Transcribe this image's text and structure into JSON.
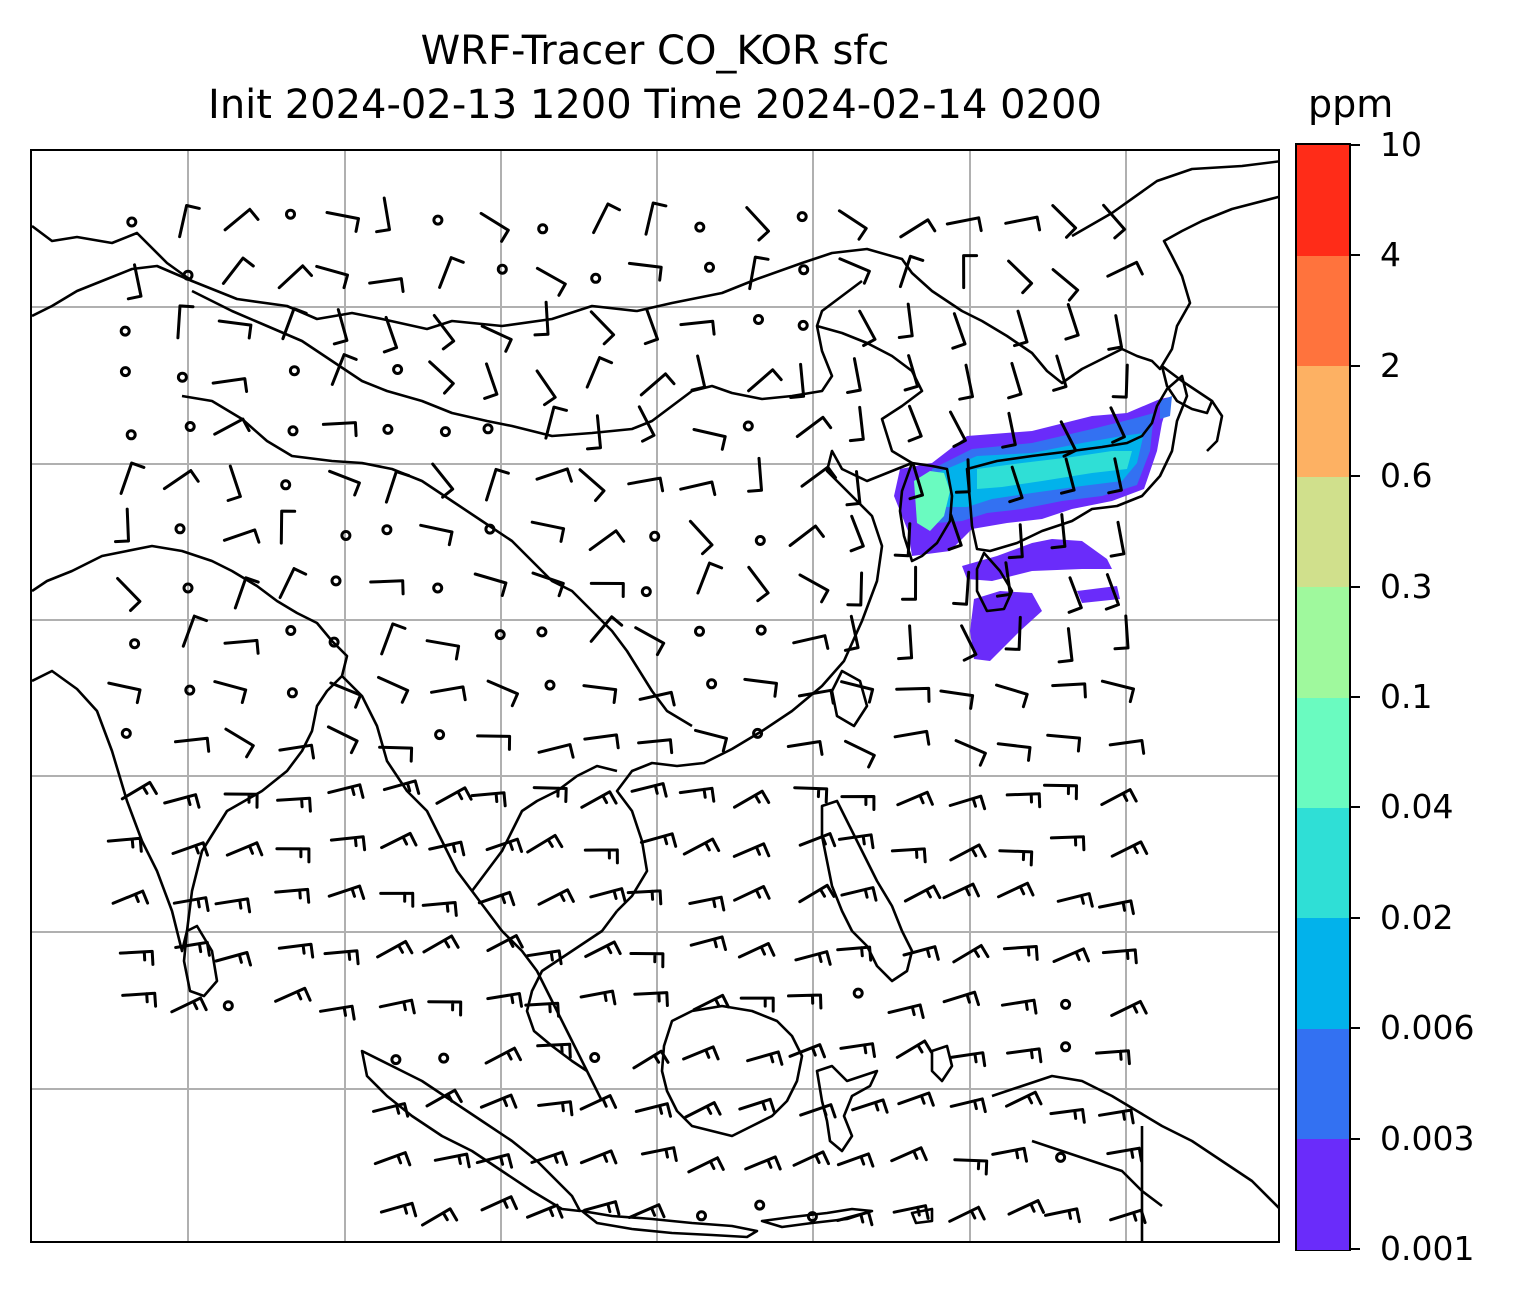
{
  "title": {
    "line1": "WRF-Tracer CO_KOR sfc",
    "line2": "Init 2024-02-13 1200 Time 2024-02-14 0200"
  },
  "colorbar": {
    "unit": "ppm",
    "levels": [
      "0.001",
      "0.003",
      "0.006",
      "0.02",
      "0.04",
      "0.1",
      "0.3",
      "0.6",
      "2",
      "4",
      "10"
    ],
    "colors": [
      "#6a2cfa",
      "#3371f2",
      "#02b2eb",
      "#2fdfd6",
      "#6afbc0",
      "#9ff99d",
      "#d0e08c",
      "#fdb163",
      "#ff733d",
      "#ff2c18"
    ]
  },
  "map": {
    "gridlines": true,
    "features": [
      "coastlines",
      "country-borders",
      "wind-barbs",
      "tracer-concentration"
    ],
    "colors": {
      "grid": "#b0b0b0",
      "coastline": "#000000",
      "barb": "#000000"
    }
  }
}
